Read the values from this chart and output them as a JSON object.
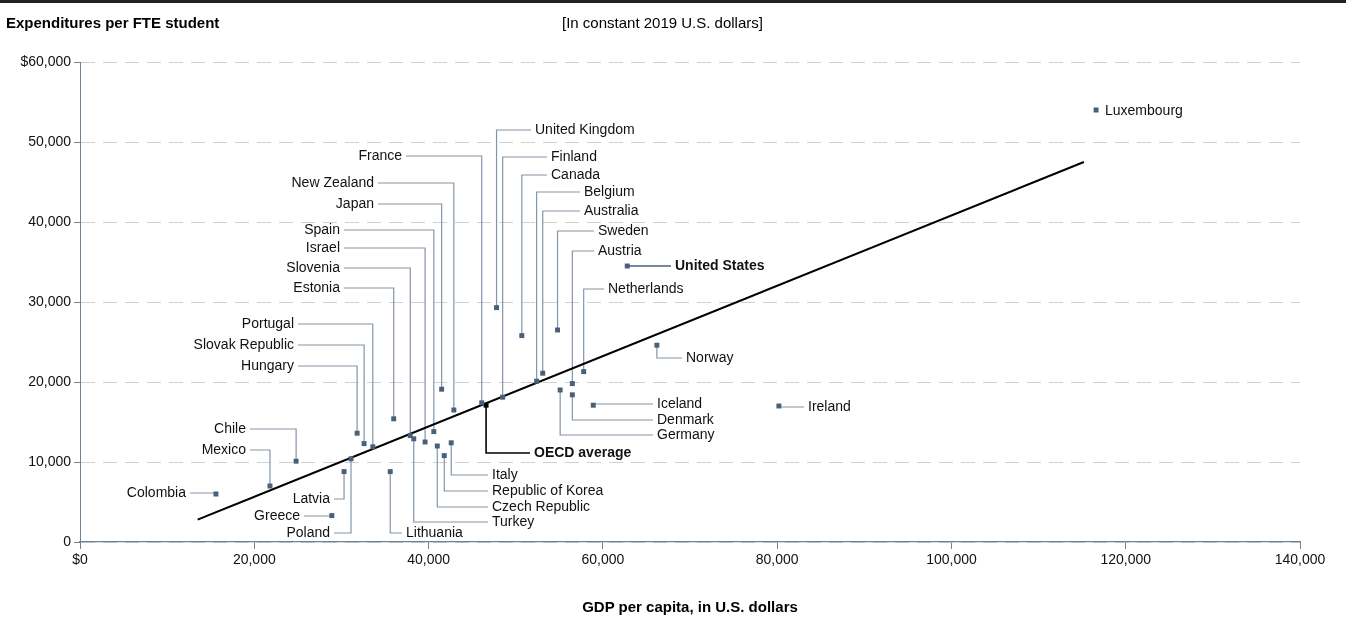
{
  "chart_data": {
    "type": "scatter",
    "ylabel": "Expenditures per FTE student",
    "subtitle": "[In constant 2019 U.S. dollars]",
    "xlabel": "GDP per capita, in U.S. dollars",
    "xlim": [
      0,
      140000
    ],
    "xticks": [
      {
        "value": 0,
        "label": "$0"
      },
      {
        "value": 20000,
        "label": "20,000"
      },
      {
        "value": 40000,
        "label": "40,000"
      },
      {
        "value": 60000,
        "label": "60,000"
      },
      {
        "value": 80000,
        "label": "80,000"
      },
      {
        "value": 100000,
        "label": "100,000"
      },
      {
        "value": 120000,
        "label": "120,000"
      },
      {
        "value": 140000,
        "label": "140,000"
      }
    ],
    "ylim": [
      0,
      60000
    ],
    "yticks": [
      {
        "value": 0,
        "label": "0"
      },
      {
        "value": 10000,
        "label": "10,000"
      },
      {
        "value": 20000,
        "label": "20,000"
      },
      {
        "value": 30000,
        "label": "30,000"
      },
      {
        "value": 40000,
        "label": "40,000"
      },
      {
        "value": 50000,
        "label": "50,000"
      },
      {
        "value": 60000,
        "label": "$60,000"
      }
    ],
    "grid": "y",
    "marker": "square",
    "series": [
      {
        "name": "Colombia",
        "color": "#4a6079",
        "x": [
          15600
        ],
        "values": [
          6000
        ]
      },
      {
        "name": "Mexico",
        "color": "#4a6079",
        "x": [
          21800
        ],
        "values": [
          7000
        ]
      },
      {
        "name": "Chile",
        "color": "#4a6079",
        "x": [
          24800
        ],
        "values": [
          10100
        ]
      },
      {
        "name": "Latvia",
        "color": "#4a6079",
        "x": [
          30300
        ],
        "values": [
          8800
        ]
      },
      {
        "name": "Greece",
        "color": "#4a6079",
        "x": [
          28900
        ],
        "values": [
          3300
        ]
      },
      {
        "name": "Poland",
        "color": "#4a6079",
        "x": [
          31100
        ],
        "values": [
          10400
        ]
      },
      {
        "name": "Hungary",
        "color": "#4a6079",
        "x": [
          31800
        ],
        "values": [
          13600
        ]
      },
      {
        "name": "Slovak Republic",
        "color": "#4a6079",
        "x": [
          32600
        ],
        "values": [
          12300
        ]
      },
      {
        "name": "Portugal",
        "color": "#4a6079",
        "x": [
          33600
        ],
        "values": [
          11900
        ]
      },
      {
        "name": "Estonia",
        "color": "#4a6079",
        "x": [
          36000
        ],
        "values": [
          15400
        ]
      },
      {
        "name": "Lithuania",
        "color": "#4a6079",
        "x": [
          35600
        ],
        "values": [
          8800
        ]
      },
      {
        "name": "Slovenia",
        "color": "#4a6079",
        "x": [
          37900
        ],
        "values": [
          13300
        ]
      },
      {
        "name": "Turkey",
        "color": "#4a6079",
        "x": [
          38300
        ],
        "values": [
          12900
        ]
      },
      {
        "name": "Israel",
        "color": "#4a6079",
        "x": [
          39600
        ],
        "values": [
          12500
        ]
      },
      {
        "name": "Spain",
        "color": "#4a6079",
        "x": [
          40600
        ],
        "values": [
          13800
        ]
      },
      {
        "name": "Czech Republic",
        "color": "#4a6079",
        "x": [
          41000
        ],
        "values": [
          12000
        ]
      },
      {
        "name": "Republic of Korea",
        "color": "#4a6079",
        "x": [
          41800
        ],
        "values": [
          10800
        ]
      },
      {
        "name": "Italy",
        "color": "#4a6079",
        "x": [
          42600
        ],
        "values": [
          12400
        ]
      },
      {
        "name": "Japan",
        "color": "#4a6079",
        "x": [
          41500
        ],
        "values": [
          19100
        ]
      },
      {
        "name": "New Zealand",
        "color": "#4a6079",
        "x": [
          42900
        ],
        "values": [
          16500
        ]
      },
      {
        "name": "France",
        "color": "#4a6079",
        "x": [
          46100
        ],
        "values": [
          17400
        ]
      },
      {
        "name": "OECD average",
        "color": "#000000",
        "x": [
          46600
        ],
        "values": [
          17100
        ]
      },
      {
        "name": "United Kingdom",
        "color": "#4a6079",
        "x": [
          47800
        ],
        "values": [
          29300
        ]
      },
      {
        "name": "Finland",
        "color": "#4a6079",
        "x": [
          48500
        ],
        "values": [
          18100
        ]
      },
      {
        "name": "Canada",
        "color": "#4a6079",
        "x": [
          50700
        ],
        "values": [
          25800
        ]
      },
      {
        "name": "Belgium",
        "color": "#4a6079",
        "x": [
          52400
        ],
        "values": [
          20100
        ]
      },
      {
        "name": "Australia",
        "color": "#4a6079",
        "x": [
          53100
        ],
        "values": [
          21100
        ]
      },
      {
        "name": "Sweden",
        "color": "#4a6079",
        "x": [
          54800
        ],
        "values": [
          26500
        ]
      },
      {
        "name": "Germany",
        "color": "#4a6079",
        "x": [
          55100
        ],
        "values": [
          19000
        ]
      },
      {
        "name": "Austria",
        "color": "#4a6079",
        "x": [
          56500
        ],
        "values": [
          19800
        ]
      },
      {
        "name": "Denmark",
        "color": "#4a6079",
        "x": [
          56500
        ],
        "values": [
          18400
        ]
      },
      {
        "name": "Netherlands",
        "color": "#4a6079",
        "x": [
          57800
        ],
        "values": [
          21300
        ]
      },
      {
        "name": "Iceland",
        "color": "#4a6079",
        "x": [
          58900
        ],
        "values": [
          17100
        ]
      },
      {
        "name": "United States",
        "color": "#4a6079",
        "x": [
          62800
        ],
        "values": [
          34500
        ]
      },
      {
        "name": "Norway",
        "color": "#4a6079",
        "x": [
          66200
        ],
        "values": [
          24600
        ]
      },
      {
        "name": "Ireland",
        "color": "#4a6079",
        "x": [
          80200
        ],
        "values": [
          17000
        ]
      },
      {
        "name": "Luxembourg",
        "color": "#4a6079",
        "x": [
          116600
        ],
        "values": [
          54000
        ]
      },
      {
        "type": "line",
        "color": "#000000",
        "marker": "none",
        "x": [
          13500,
          115200
        ],
        "values": [
          2800,
          47500
        ]
      }
    ]
  }
}
